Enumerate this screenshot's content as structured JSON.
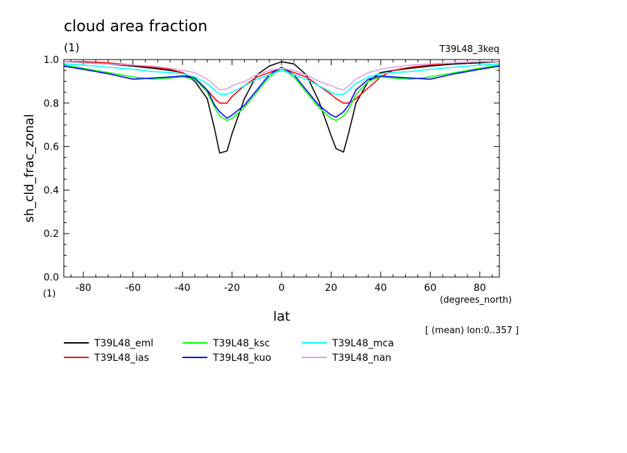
{
  "chart_data": {
    "type": "line",
    "title": "cloud area fraction",
    "title_units": "(1)",
    "experiment": "T39L48_3keq",
    "ylabel": "sh_cld_frac_zonal",
    "y_units": "(1)",
    "xlabel": "lat",
    "x_units": "(degrees_north)",
    "footnote": "[ (mean) lon:0..357 ]",
    "xlim": [
      -87.9,
      87.9
    ],
    "ylim": [
      0.0,
      1.0
    ],
    "x_ticks": [
      -80,
      -60,
      -40,
      -20,
      0,
      20,
      40,
      60,
      80
    ],
    "x_tick_labels": [
      "-80",
      "-60",
      "-40",
      "-20",
      "0",
      "20",
      "40",
      "60",
      "80"
    ],
    "y_ticks": [
      0.0,
      0.2,
      0.4,
      0.6,
      0.8,
      1.0
    ],
    "y_tick_labels": [
      "0.0",
      "0.2",
      "0.4",
      "0.6",
      "0.8",
      "1.0"
    ],
    "x": [
      -87.9,
      -80,
      -70,
      -60,
      -52,
      -45,
      -40,
      -35,
      -30,
      -27,
      -25,
      -22,
      -20,
      -15,
      -10,
      -5,
      0,
      5,
      10,
      15,
      20,
      22,
      25,
      27,
      30,
      35,
      40,
      45,
      52,
      60,
      70,
      80,
      87.9
    ],
    "series": [
      {
        "name": "T39L48_eml",
        "color": "#000000",
        "values": [
          0.99,
          0.985,
          0.98,
          0.97,
          0.96,
          0.95,
          0.94,
          0.9,
          0.82,
          0.68,
          0.57,
          0.58,
          0.66,
          0.82,
          0.93,
          0.97,
          0.99,
          0.98,
          0.93,
          0.81,
          0.65,
          0.59,
          0.575,
          0.66,
          0.8,
          0.9,
          0.94,
          0.95,
          0.96,
          0.97,
          0.98,
          0.985,
          0.99
        ]
      },
      {
        "name": "T39L48_ias",
        "color": "#ff0000",
        "values": [
          0.99,
          0.99,
          0.985,
          0.975,
          0.965,
          0.955,
          0.94,
          0.91,
          0.86,
          0.82,
          0.8,
          0.8,
          0.83,
          0.88,
          0.92,
          0.94,
          0.96,
          0.94,
          0.92,
          0.88,
          0.84,
          0.82,
          0.8,
          0.8,
          0.82,
          0.87,
          0.92,
          0.95,
          0.965,
          0.975,
          0.985,
          0.99,
          0.99
        ]
      },
      {
        "name": "T39L48_ksc",
        "color": "#00ff00",
        "values": [
          0.975,
          0.96,
          0.94,
          0.92,
          0.91,
          0.915,
          0.92,
          0.91,
          0.85,
          0.78,
          0.74,
          0.72,
          0.73,
          0.78,
          0.85,
          0.92,
          0.96,
          0.92,
          0.85,
          0.78,
          0.73,
          0.72,
          0.74,
          0.77,
          0.84,
          0.9,
          0.92,
          0.915,
          0.91,
          0.92,
          0.94,
          0.96,
          0.975
        ]
      },
      {
        "name": "T39L48_kuo",
        "color": "#0000ff",
        "values": [
          0.97,
          0.955,
          0.935,
          0.91,
          0.915,
          0.92,
          0.925,
          0.915,
          0.86,
          0.79,
          0.76,
          0.73,
          0.745,
          0.79,
          0.86,
          0.93,
          0.965,
          0.93,
          0.86,
          0.79,
          0.745,
          0.735,
          0.76,
          0.79,
          0.86,
          0.91,
          0.925,
          0.92,
          0.915,
          0.91,
          0.935,
          0.955,
          0.97
        ]
      },
      {
        "name": "T39L48_mca",
        "color": "#00ffff",
        "values": [
          0.98,
          0.975,
          0.965,
          0.955,
          0.945,
          0.94,
          0.935,
          0.92,
          0.89,
          0.86,
          0.84,
          0.84,
          0.85,
          0.88,
          0.91,
          0.93,
          0.95,
          0.93,
          0.91,
          0.88,
          0.85,
          0.84,
          0.84,
          0.86,
          0.89,
          0.92,
          0.935,
          0.94,
          0.945,
          0.955,
          0.965,
          0.975,
          0.98
        ]
      },
      {
        "name": "T39L48_nan",
        "color": "#e0a0e0",
        "values": [
          0.99,
          0.985,
          0.98,
          0.975,
          0.97,
          0.96,
          0.95,
          0.94,
          0.91,
          0.88,
          0.86,
          0.865,
          0.88,
          0.9,
          0.93,
          0.95,
          0.96,
          0.95,
          0.93,
          0.9,
          0.88,
          0.87,
          0.86,
          0.88,
          0.91,
          0.94,
          0.955,
          0.965,
          0.975,
          0.98,
          0.985,
          0.99,
          0.99
        ]
      }
    ]
  }
}
